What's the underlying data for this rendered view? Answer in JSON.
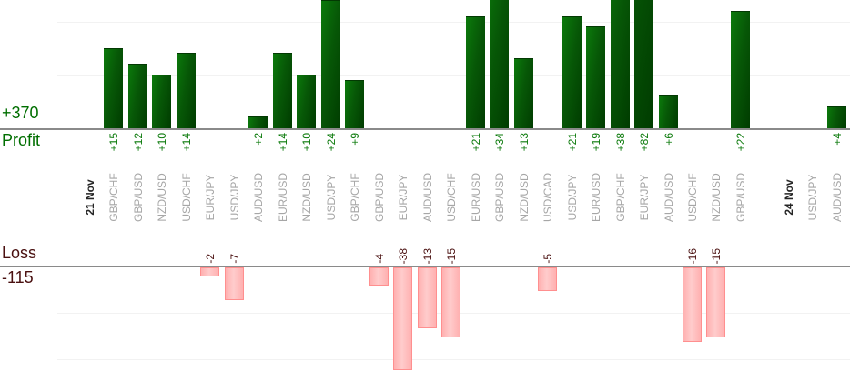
{
  "colors": {
    "profit_text": "#006e00",
    "profit_value_text": "#0b7a0b",
    "loss_text": "#4a1010",
    "bar_green_light": "#0b7a0b",
    "bar_green_dark": "#003c00",
    "bar_pink_light": "#ffcccc",
    "bar_pink": "#ffb0b0",
    "bar_pink_border": "#ff8f8f",
    "category_text": "#a6a6a6",
    "date_text": "#262626",
    "axis_line": "#8a8a8a",
    "gridline": "#f2f2f2"
  },
  "profit_axis": {
    "total_label": "+370",
    "axis_label": "Profit"
  },
  "loss_axis": {
    "axis_label": "Loss",
    "total_label": "-115"
  },
  "chart_data": {
    "type": "bar",
    "orientation": "vertical",
    "profit_total": 370,
    "loss_total": -115,
    "value_prefix_positive": "+",
    "gridlines": {
      "profit_values": [
        10,
        20
      ],
      "loss_values": [
        10,
        20
      ]
    },
    "visible_profit_range": [
      0,
      24
    ],
    "visible_loss_range": [
      0,
      -22
    ],
    "columns": [
      {
        "label": "21 Nov",
        "kind": "date",
        "value": null
      },
      {
        "label": "GBP/CHF",
        "kind": "pair",
        "value": 15
      },
      {
        "label": "GBP/USD",
        "kind": "pair",
        "value": 12
      },
      {
        "label": "NZD/USD",
        "kind": "pair",
        "value": 10
      },
      {
        "label": "USD/CHF",
        "kind": "pair",
        "value": 14
      },
      {
        "label": "EUR/JPY",
        "kind": "pair",
        "value": -2
      },
      {
        "label": "USD/JPY",
        "kind": "pair",
        "value": -7
      },
      {
        "label": "AUD/USD",
        "kind": "pair",
        "value": 2
      },
      {
        "label": "EUR/USD",
        "kind": "pair",
        "value": 14
      },
      {
        "label": "NZD/USD",
        "kind": "pair",
        "value": 10
      },
      {
        "label": "USD/JPY",
        "kind": "pair",
        "value": 24
      },
      {
        "label": "GBP/CHF",
        "kind": "pair",
        "value": 9
      },
      {
        "label": "GBP/USD",
        "kind": "pair",
        "value": -4
      },
      {
        "label": "EUR/JPY",
        "kind": "pair",
        "value": -38
      },
      {
        "label": "AUD/USD",
        "kind": "pair",
        "value": -13
      },
      {
        "label": "USD/CHF",
        "kind": "pair",
        "value": -15
      },
      {
        "label": "EUR/USD",
        "kind": "pair",
        "value": 21
      },
      {
        "label": "GBP/USD",
        "kind": "pair",
        "value": 34
      },
      {
        "label": "NZD/USD",
        "kind": "pair",
        "value": 13
      },
      {
        "label": "USD/CAD",
        "kind": "pair",
        "value": -5
      },
      {
        "label": "USD/JPY",
        "kind": "pair",
        "value": 21
      },
      {
        "label": "EUR/USD",
        "kind": "pair",
        "value": 19
      },
      {
        "label": "GBP/CHF",
        "kind": "pair",
        "value": 38
      },
      {
        "label": "EUR/JPY",
        "kind": "pair",
        "value": 82
      },
      {
        "label": "AUD/USD",
        "kind": "pair",
        "value": 6
      },
      {
        "label": "USD/CHF",
        "kind": "pair",
        "value": -16
      },
      {
        "label": "NZD/USD",
        "kind": "pair",
        "value": -15
      },
      {
        "label": "GBP/USD",
        "kind": "pair",
        "value": 22
      },
      {
        "label": "",
        "kind": "spacer",
        "value": null
      },
      {
        "label": "24 Nov",
        "kind": "date",
        "value": null
      },
      {
        "label": "USD/JPY",
        "kind": "pair",
        "value": null
      },
      {
        "label": "AUD/USD",
        "kind": "pair",
        "value": 4
      }
    ]
  }
}
